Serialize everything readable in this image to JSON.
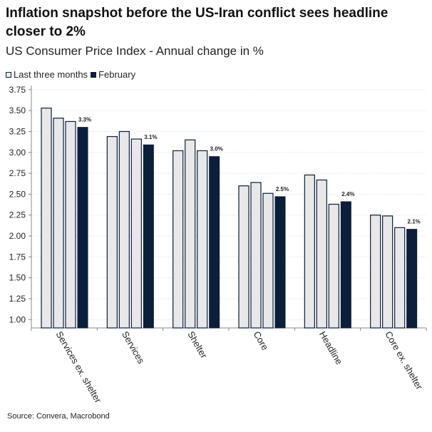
{
  "header": {
    "title": "Inflation snapshot before the US-Iran conflict sees headline closer to 2%",
    "subtitle": "US Consumer Price Index - Annual change in %"
  },
  "legend": {
    "items": [
      {
        "label": "Last three months",
        "color": "#e8e8ea"
      },
      {
        "label": "February",
        "color": "#0b1e3a"
      }
    ]
  },
  "footer": {
    "source": "Source: Convera, Macrobond"
  },
  "chart_data": {
    "type": "bar",
    "title": "Inflation snapshot before the US-Iran conflict sees headline closer to 2%",
    "subtitle": "US Consumer Price Index - Annual change in %",
    "categories": [
      "Services ex. shelter",
      "Services",
      "Shelter",
      "Core",
      "Headline",
      "Core ex. shelter"
    ],
    "series": [
      {
        "name": "Last three months",
        "color": "#e8e8ea",
        "values": [
          [
            3.53,
            3.41,
            3.37
          ],
          [
            3.19,
            3.25,
            3.16
          ],
          [
            3.02,
            3.15,
            3.02
          ],
          [
            2.6,
            2.64,
            2.51
          ],
          [
            2.73,
            2.67,
            2.38
          ],
          [
            2.25,
            2.24,
            2.1
          ]
        ]
      },
      {
        "name": "February",
        "color": "#0b1e3a",
        "values": [
          3.3,
          3.09,
          2.95,
          2.47,
          2.41,
          2.08
        ]
      }
    ],
    "data_labels": [
      "3.3%",
      "3.1%",
      "3.0%",
      "2.5%",
      "2.4%",
      "2.1%"
    ],
    "ylim": [
      0.9,
      3.8
    ],
    "yticks": [
      "1.00",
      "1.25",
      "1.50",
      "1.75",
      "2.00",
      "2.25",
      "2.50",
      "2.75",
      "3.00",
      "3.25",
      "3.50",
      "3.75"
    ],
    "grid": true,
    "legend_position": "top-left"
  }
}
